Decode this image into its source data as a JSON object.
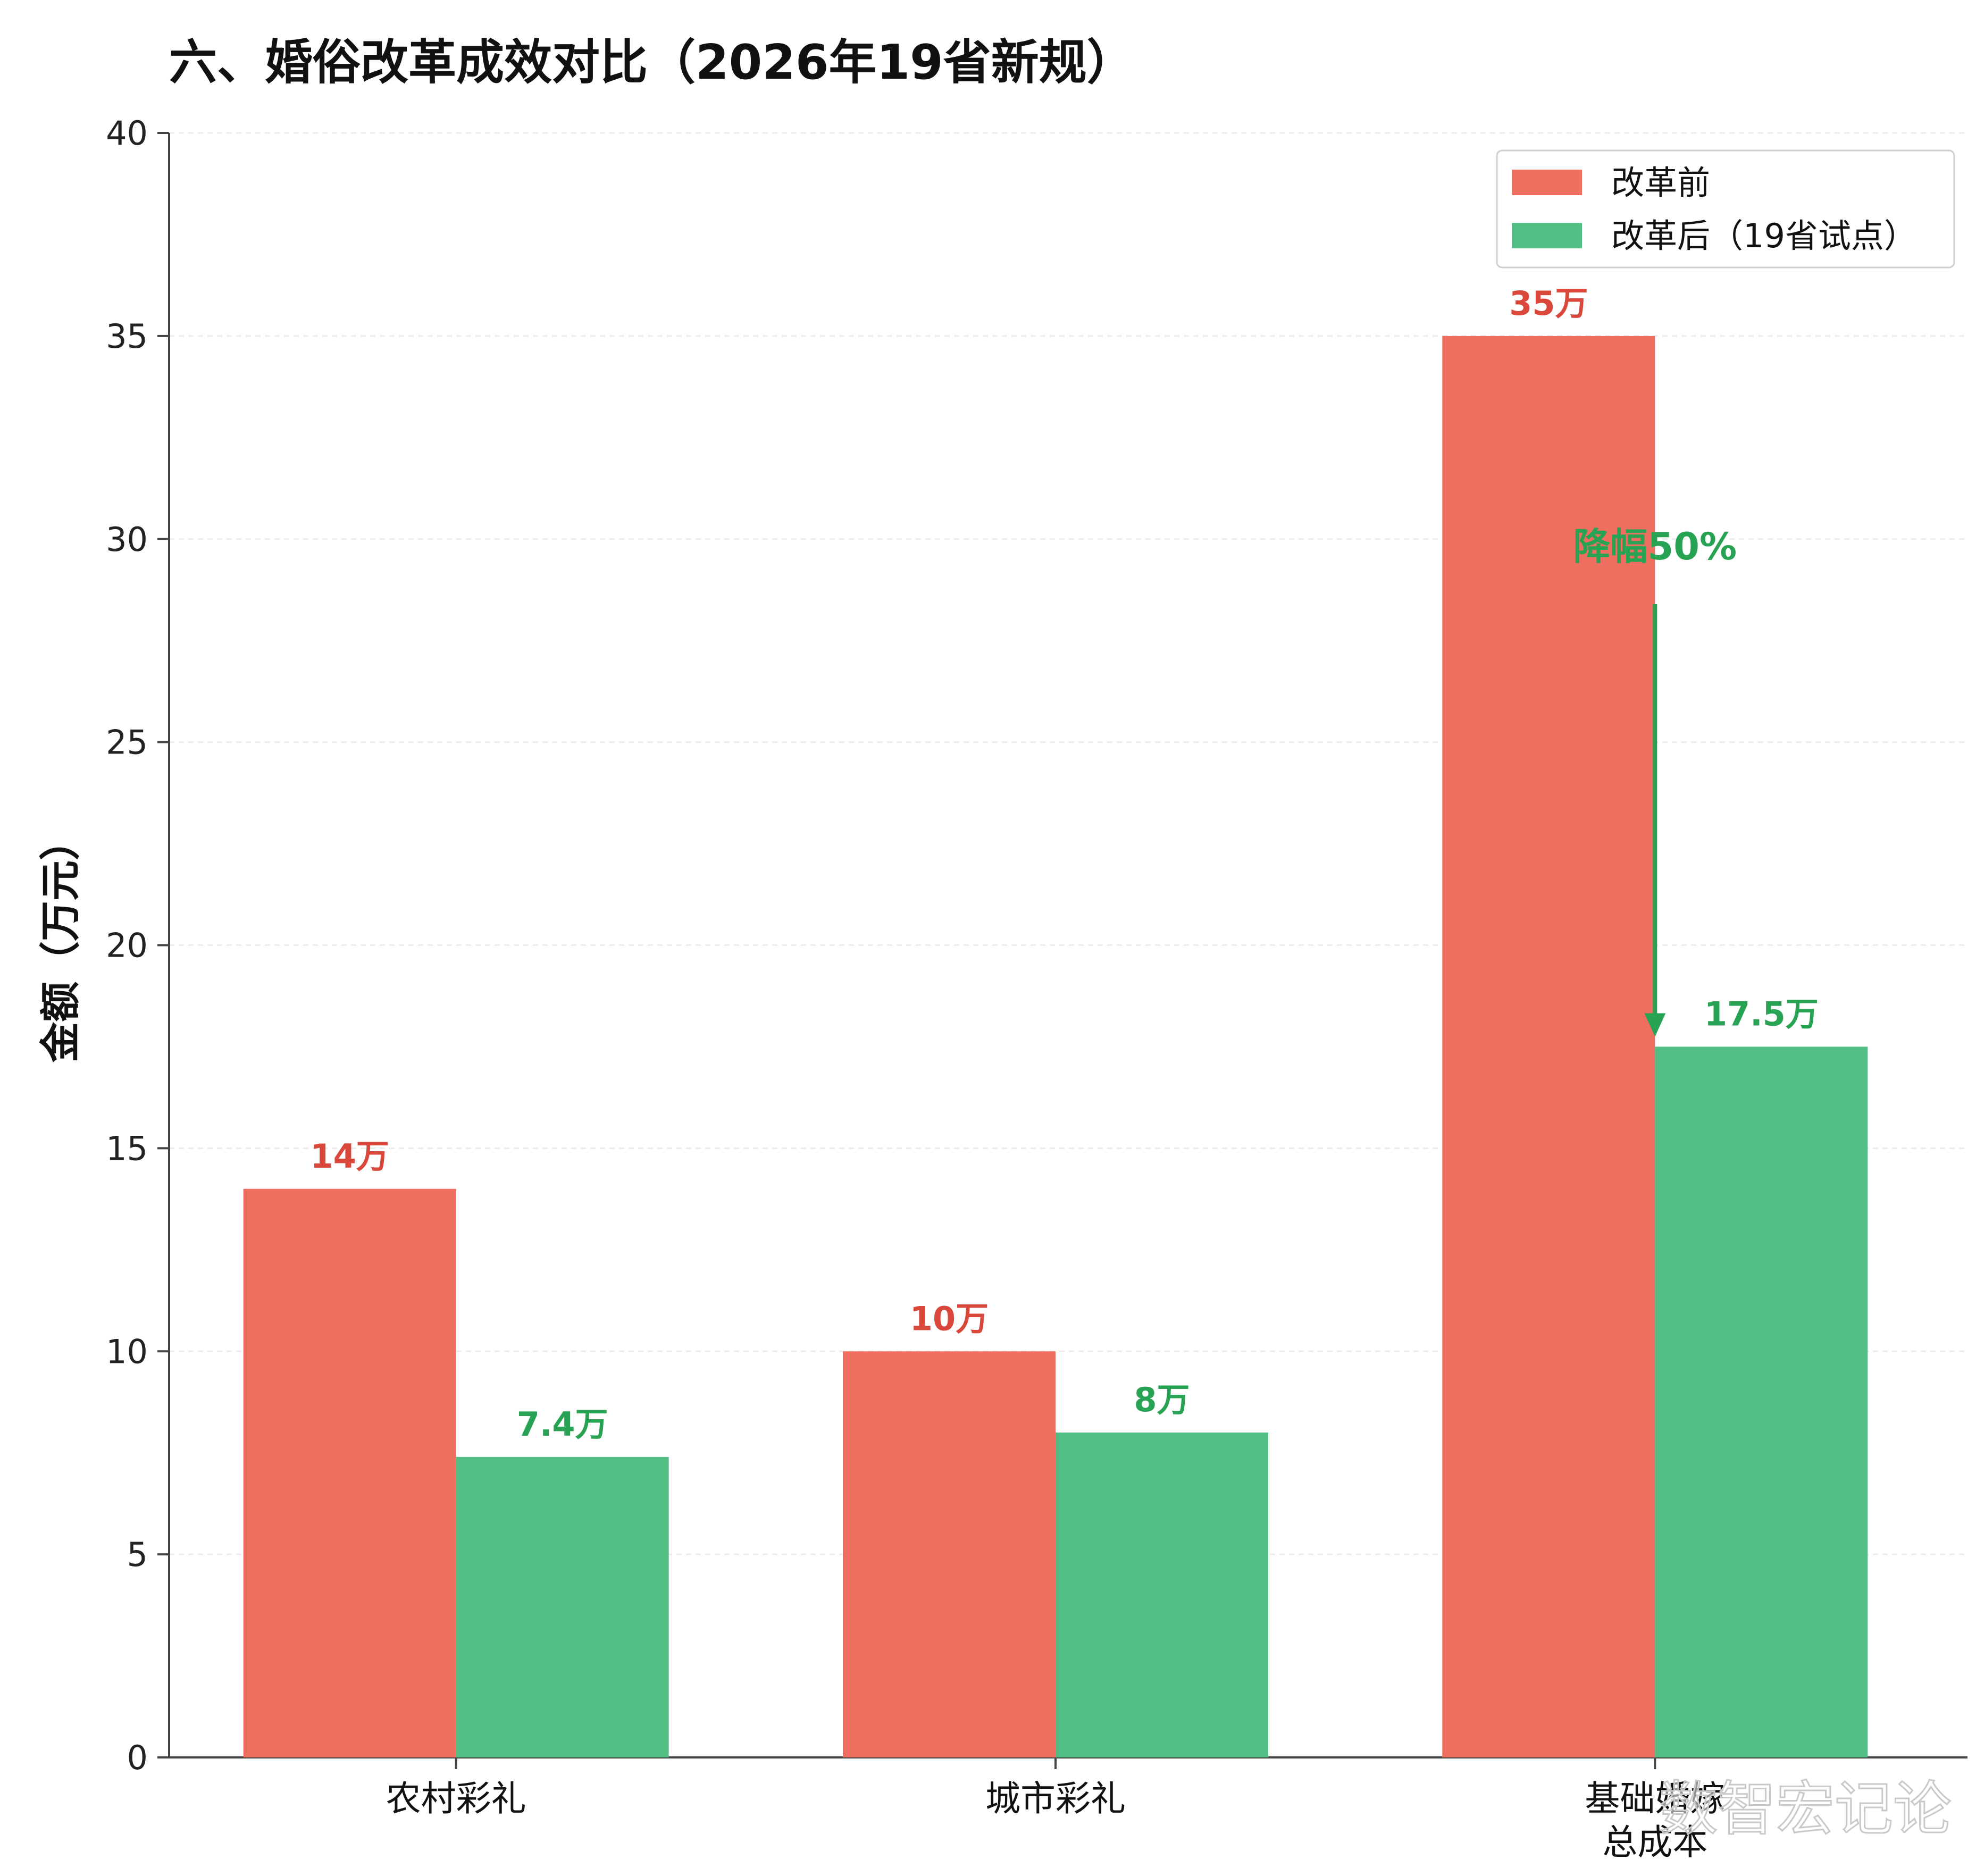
{
  "chart_data": {
    "type": "bar",
    "title": "六、婚俗改革成效对比（2026年19省新规）",
    "ylabel": "金额（万元）",
    "xlabel": "",
    "ylim": [
      0,
      40
    ],
    "yticks": [
      0,
      5,
      10,
      15,
      20,
      25,
      30,
      35,
      40
    ],
    "grid": true,
    "legend_position": "top-right",
    "categories": [
      "农村彩礼",
      "城市彩礼",
      "基础婚嫁\n总成本"
    ],
    "series": [
      {
        "name": "改革前",
        "color": "#ee6e5f",
        "label_color": "#d9483b",
        "values": [
          14,
          10,
          35
        ],
        "labels": [
          "14万",
          "10万",
          "35万"
        ]
      },
      {
        "name": "改革后（19省试点）",
        "color": "#52bd84",
        "label_color": "#27a353",
        "values": [
          7.4,
          8,
          17.5
        ],
        "labels": [
          "7.4万",
          "8万",
          "17.5万"
        ]
      }
    ],
    "annotation": {
      "text": "降幅50%",
      "color": "#27a353",
      "category_index": 2,
      "from": 35,
      "to": 17.5
    }
  },
  "watermark": "数智宏记论"
}
